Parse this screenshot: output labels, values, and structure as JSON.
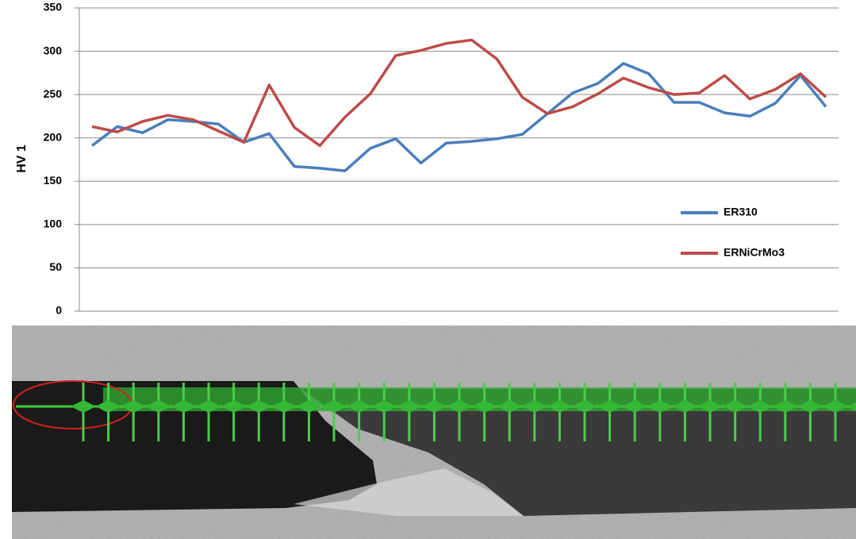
{
  "chart_data": {
    "type": "line",
    "y_label": "HV 1",
    "categories": [
      null,
      null,
      null,
      null,
      null,
      null,
      null,
      null,
      null,
      null,
      null,
      null,
      null,
      null,
      null,
      null,
      null,
      null,
      null,
      null,
      null,
      null,
      null,
      null,
      null,
      null,
      null,
      null,
      null,
      null
    ],
    "series": [
      {
        "name": "ER310",
        "color": "#4a7ebb",
        "values": [
          191,
          213,
          206,
          221,
          219,
          216,
          195,
          205,
          167,
          165,
          162,
          188,
          199,
          171,
          194,
          196,
          199,
          204,
          228,
          252,
          263,
          286,
          274,
          241,
          241,
          229,
          225,
          240,
          272,
          236
        ]
      },
      {
        "name": "ERNiCrMo3",
        "color": "#be4b48",
        "values": [
          213,
          207,
          219,
          226,
          221,
          208,
          195,
          261,
          212,
          191,
          224,
          251,
          295,
          301,
          309,
          313,
          291,
          247,
          228,
          236,
          251,
          269,
          258,
          250,
          252,
          272,
          245,
          256,
          274,
          247
        ]
      }
    ],
    "ylim": [
      0,
      350
    ],
    "yticks": [
      0,
      50,
      100,
      150,
      200,
      250,
      300,
      350
    ],
    "grid": true,
    "legend": "right"
  }
}
